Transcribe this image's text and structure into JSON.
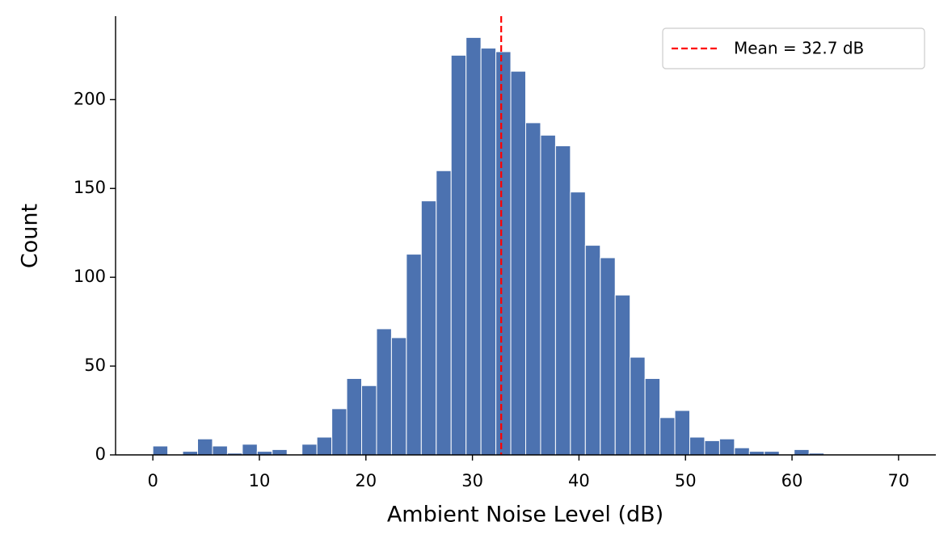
{
  "chart_data": {
    "type": "histogram",
    "x_label": "Ambient Noise Level (dB)",
    "y_label": "Count",
    "bins": [
      0,
      1.4,
      2.8,
      4.2,
      5.6,
      7,
      8.4,
      9.8,
      11.2,
      12.6,
      14,
      15.4,
      16.8,
      18.2,
      19.6,
      21,
      22.4,
      23.8,
      25.2,
      26.6,
      28,
      29.4,
      30.8,
      32.2,
      33.6,
      35,
      36.4,
      37.8,
      39.2,
      40.6,
      42,
      43.4,
      44.8,
      46.2,
      47.6,
      49,
      50.4,
      51.8,
      53.2,
      54.6,
      56,
      57.4,
      58.8,
      60.2,
      61.6,
      63,
      64.4,
      65.8,
      67.2,
      68.6,
      70
    ],
    "values": [
      5,
      0,
      2,
      9,
      5,
      1,
      6,
      2,
      3,
      0,
      6,
      10,
      26,
      43,
      39,
      71,
      66,
      113,
      143,
      160,
      225,
      235,
      229,
      227,
      216,
      187,
      180,
      174,
      148,
      118,
      111,
      90,
      55,
      43,
      21,
      25,
      10,
      8,
      9,
      4,
      2,
      2,
      0,
      3,
      1,
      0,
      0,
      0,
      0,
      0
    ],
    "color": "#4c72b0",
    "vline": {
      "value": 32.7,
      "label": "Mean = 32.7 dB",
      "color": "#ff0000",
      "style": "dashed"
    },
    "legend": "upper right",
    "xlim": [
      -3.5,
      73.5
    ],
    "xticks": [
      0,
      10,
      20,
      30,
      40,
      50,
      60,
      70
    ],
    "ylim": [
      0,
      247
    ],
    "yticks": [
      0,
      50,
      100,
      150,
      200
    ]
  }
}
